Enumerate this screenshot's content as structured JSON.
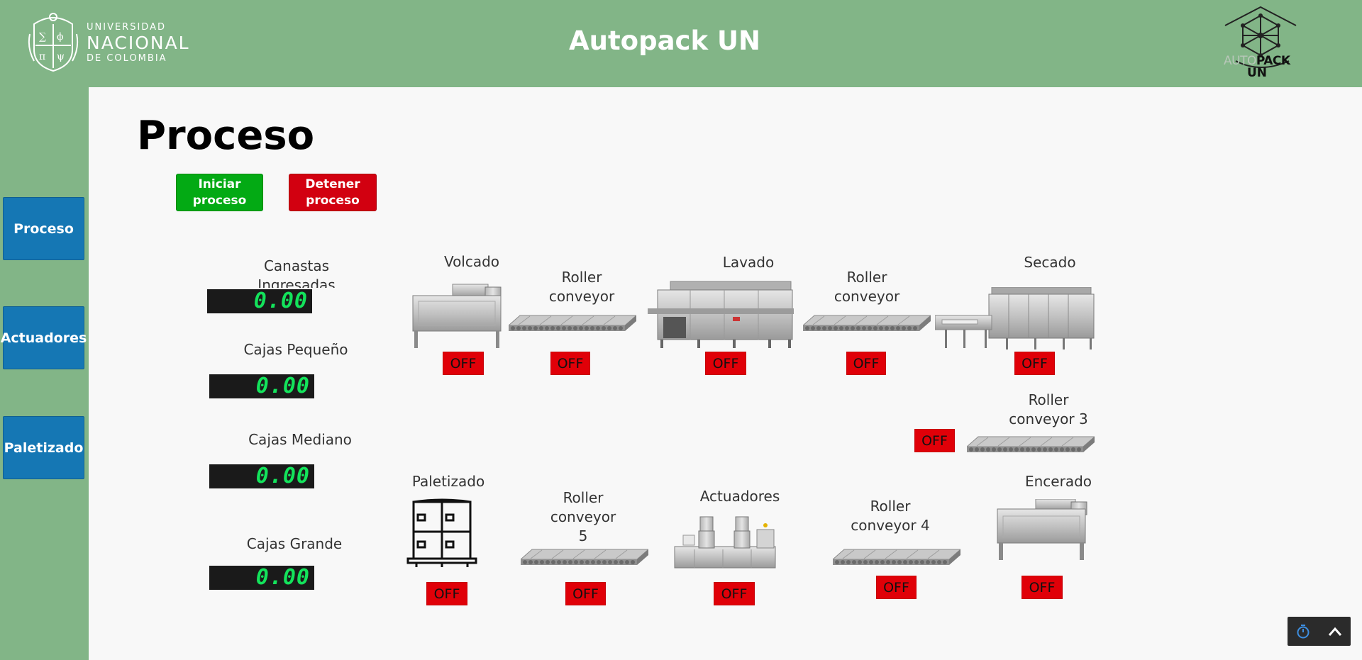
{
  "header": {
    "university": {
      "line1": "UNIVERSIDAD",
      "line2": "NACIONAL",
      "line3": "DE COLOMBIA"
    },
    "title": "Autopack UN",
    "brand": {
      "auto": "AUTO",
      "pack": "PACK",
      "un": "UN"
    }
  },
  "sidebar": {
    "items": [
      {
        "label": "Proceso"
      },
      {
        "label": "Actuadores"
      },
      {
        "label": "Paletizado"
      }
    ]
  },
  "main": {
    "title": "Proceso",
    "start_button": "Iniciar proceso",
    "stop_button": "Detener proceso"
  },
  "counters": [
    {
      "label": "Canastas Ingresadas",
      "value": "0.00"
    },
    {
      "label": "Cajas Pequeño",
      "value": "0.00"
    },
    {
      "label": "Cajas Mediano",
      "value": "0.00"
    },
    {
      "label": "Cajas Grande",
      "value": "0.00"
    }
  ],
  "stations": {
    "volcado": {
      "label": "Volcado",
      "status": "OFF"
    },
    "rc1": {
      "label": "Roller conveyor 1",
      "status": "OFF"
    },
    "lavado": {
      "label": "Lavado",
      "status": "OFF"
    },
    "rc2": {
      "label": "Roller conveyor 2",
      "status": "OFF"
    },
    "secado": {
      "label": "Secado",
      "status": "OFF"
    },
    "rc3": {
      "label": "Roller conveyor 3",
      "status": "OFF"
    },
    "paletizado": {
      "label": "Paletizado",
      "status": "OFF"
    },
    "rc5": {
      "label": "Roller conveyor 5",
      "status": "OFF"
    },
    "actuadores": {
      "label": "Actuadores",
      "status": "OFF"
    },
    "rc4": {
      "label": "Roller conveyor 4",
      "status": "OFF"
    },
    "encerado": {
      "label": "Encerado",
      "status": "OFF"
    }
  },
  "colors": {
    "header_green": "#82b587",
    "nav_blue": "#1577b4",
    "start_green": "#03aa14",
    "stop_red": "#d20010",
    "off_red": "#e00008",
    "lcd_green": "#13e35b"
  },
  "icons": {
    "timer": "stopwatch-icon",
    "collapse": "chevron-up-icon"
  }
}
